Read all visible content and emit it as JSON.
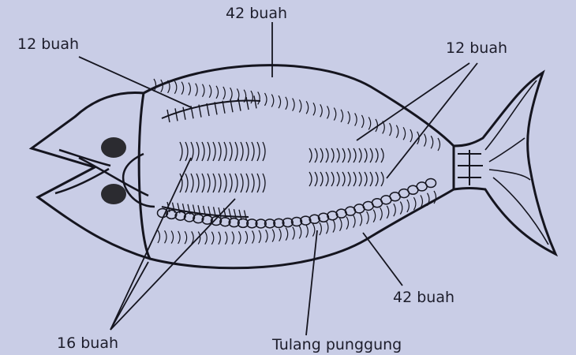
{
  "diagram": {
    "labels": {
      "top_center": "42 buah",
      "top_left": "12 buah",
      "top_right": "12 buah",
      "bottom_right": "42 buah",
      "bottom_left": "16 buah",
      "bottom_center": "Tulang punggung"
    },
    "colors": {
      "paper": "#c9cde6",
      "ink": "#15151f",
      "eye": "#2b2b30"
    }
  }
}
